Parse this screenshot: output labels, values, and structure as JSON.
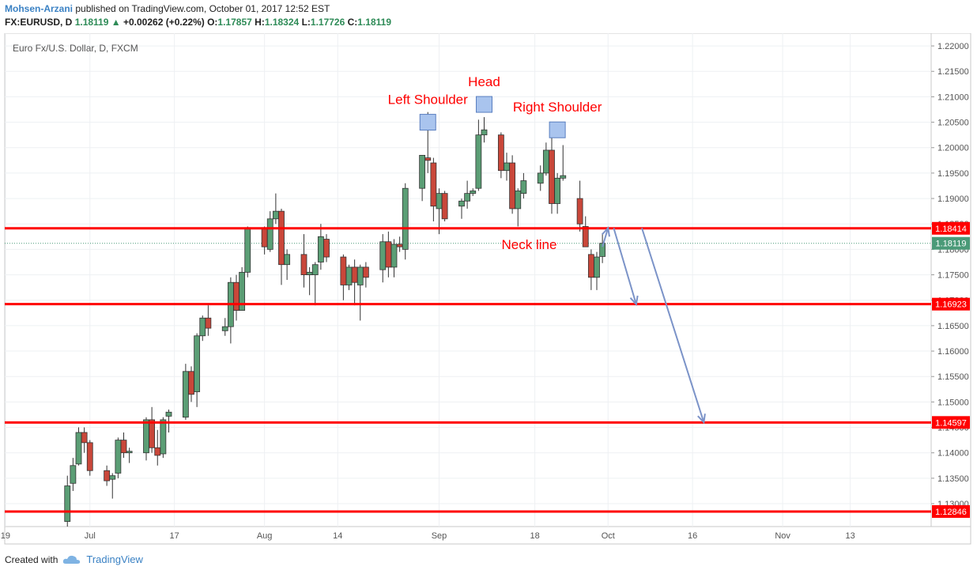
{
  "header": {
    "author": "Mohsen-Arzani",
    "published_text": "published on TradingView.com, October 01, 2017 12:52 EST",
    "symbol": "FX:EURUSD, D",
    "last": "1.18119",
    "arrow": "▲",
    "change": "+0.00262 (+0.22%)",
    "o_label": "O:",
    "o_val": "1.17857",
    "h_label": "H:",
    "h_val": "1.18324",
    "l_label": "L:",
    "l_val": "1.17726",
    "c_label": "C:",
    "c_val": "1.18119"
  },
  "footer": {
    "created_with": "Created with",
    "brand": "TradingView"
  },
  "colors": {
    "up": "#5b9e75",
    "down": "#c9473a",
    "level": "#ff0000",
    "arrow": "#7b93c8",
    "box": "#a9c4ee"
  },
  "chart_data": {
    "type": "candlestick",
    "title": "Euro Fx/U.S. Dollar, D, FXCM",
    "ylim": [
      1.1255,
      1.2225
    ],
    "y_ticks": [
      "1.22000",
      "1.21500",
      "1.21000",
      "1.20500",
      "1.20000",
      "1.19500",
      "1.19000",
      "1.18500",
      "1.18000",
      "1.17500",
      "1.17000",
      "1.16500",
      "1.16000",
      "1.15500",
      "1.15000",
      "1.14500",
      "1.14000",
      "1.13500",
      "1.13000"
    ],
    "x_ticks": [
      {
        "label": "19",
        "day": -17
      },
      {
        "label": "Jul",
        "day": -2
      },
      {
        "label": "17",
        "day": 13
      },
      {
        "label": "Aug",
        "day": 29
      },
      {
        "label": "14",
        "day": 42
      },
      {
        "label": "Sep",
        "day": 60
      },
      {
        "label": "18",
        "day": 77
      },
      {
        "label": "Oct",
        "day": 90
      },
      {
        "label": "16",
        "day": 105
      },
      {
        "label": "Nov",
        "day": 121
      },
      {
        "label": "13",
        "day": 133
      }
    ],
    "candles": [
      {
        "d": -6,
        "o": 1.1265,
        "h": 1.1355,
        "l": 1.1255,
        "c": 1.1335
      },
      {
        "d": -5,
        "o": 1.134,
        "h": 1.139,
        "l": 1.1325,
        "c": 1.1375
      },
      {
        "d": -4,
        "o": 1.1378,
        "h": 1.145,
        "l": 1.1375,
        "c": 1.144
      },
      {
        "d": -3,
        "o": 1.144,
        "h": 1.145,
        "l": 1.14,
        "c": 1.142
      },
      {
        "d": -2,
        "o": 1.142,
        "h": 1.1425,
        "l": 1.1355,
        "c": 1.1365
      },
      {
        "d": 1,
        "o": 1.1365,
        "h": 1.1375,
        "l": 1.1335,
        "c": 1.1345
      },
      {
        "d": 2,
        "o": 1.1348,
        "h": 1.136,
        "l": 1.131,
        "c": 1.1355
      },
      {
        "d": 3,
        "o": 1.136,
        "h": 1.143,
        "l": 1.135,
        "c": 1.1425
      },
      {
        "d": 4,
        "o": 1.1425,
        "h": 1.144,
        "l": 1.139,
        "c": 1.14
      },
      {
        "d": 5,
        "o": 1.14,
        "h": 1.141,
        "l": 1.138,
        "c": 1.1403
      },
      {
        "d": 8,
        "o": 1.14,
        "h": 1.147,
        "l": 1.1385,
        "c": 1.1465
      },
      {
        "d": 9,
        "o": 1.1465,
        "h": 1.149,
        "l": 1.14,
        "c": 1.141
      },
      {
        "d": 10,
        "o": 1.141,
        "h": 1.1445,
        "l": 1.1375,
        "c": 1.1395
      },
      {
        "d": 11,
        "o": 1.1398,
        "h": 1.147,
        "l": 1.139,
        "c": 1.1465
      },
      {
        "d": 12,
        "o": 1.1472,
        "h": 1.1485,
        "l": 1.144,
        "c": 1.148
      },
      {
        "d": 15,
        "o": 1.147,
        "h": 1.1575,
        "l": 1.1465,
        "c": 1.156
      },
      {
        "d": 16,
        "o": 1.156,
        "h": 1.157,
        "l": 1.15,
        "c": 1.1515
      },
      {
        "d": 17,
        "o": 1.152,
        "h": 1.1635,
        "l": 1.149,
        "c": 1.163
      },
      {
        "d": 18,
        "o": 1.163,
        "h": 1.167,
        "l": 1.162,
        "c": 1.1665
      },
      {
        "d": 19,
        "o": 1.1665,
        "h": 1.169,
        "l": 1.163,
        "c": 1.1645
      },
      {
        "d": 22,
        "o": 1.164,
        "h": 1.1665,
        "l": 1.163,
        "c": 1.1648
      },
      {
        "d": 23,
        "o": 1.1648,
        "h": 1.1745,
        "l": 1.1615,
        "c": 1.1735
      },
      {
        "d": 24,
        "o": 1.1735,
        "h": 1.175,
        "l": 1.166,
        "c": 1.168
      },
      {
        "d": 25,
        "o": 1.168,
        "h": 1.1765,
        "l": 1.168,
        "c": 1.1755
      },
      {
        "d": 26,
        "o": 1.1755,
        "h": 1.1845,
        "l": 1.1745,
        "c": 1.184
      },
      {
        "d": 29,
        "o": 1.184,
        "h": 1.1845,
        "l": 1.179,
        "c": 1.1805
      },
      {
        "d": 30,
        "o": 1.18,
        "h": 1.1875,
        "l": 1.1795,
        "c": 1.186
      },
      {
        "d": 31,
        "o": 1.186,
        "h": 1.191,
        "l": 1.185,
        "c": 1.1875
      },
      {
        "d": 32,
        "o": 1.1875,
        "h": 1.188,
        "l": 1.173,
        "c": 1.177
      },
      {
        "d": 33,
        "o": 1.177,
        "h": 1.18,
        "l": 1.174,
        "c": 1.179
      },
      {
        "d": 36,
        "o": 1.179,
        "h": 1.183,
        "l": 1.1725,
        "c": 1.175
      },
      {
        "d": 37,
        "o": 1.175,
        "h": 1.1765,
        "l": 1.171,
        "c": 1.1755
      },
      {
        "d": 38,
        "o": 1.175,
        "h": 1.1775,
        "l": 1.169,
        "c": 1.177
      },
      {
        "d": 39,
        "o": 1.1775,
        "h": 1.185,
        "l": 1.176,
        "c": 1.1825
      },
      {
        "d": 40,
        "o": 1.182,
        "h": 1.183,
        "l": 1.1775,
        "c": 1.1785
      },
      {
        "d": 43,
        "o": 1.1785,
        "h": 1.179,
        "l": 1.17,
        "c": 1.173
      },
      {
        "d": 44,
        "o": 1.173,
        "h": 1.177,
        "l": 1.172,
        "c": 1.1765
      },
      {
        "d": 45,
        "o": 1.1765,
        "h": 1.178,
        "l": 1.169,
        "c": 1.1735
      },
      {
        "d": 46,
        "o": 1.173,
        "h": 1.177,
        "l": 1.166,
        "c": 1.1765
      },
      {
        "d": 47,
        "o": 1.1765,
        "h": 1.1775,
        "l": 1.1725,
        "c": 1.1745
      },
      {
        "d": 50,
        "o": 1.176,
        "h": 1.183,
        "l": 1.1735,
        "c": 1.1815
      },
      {
        "d": 51,
        "o": 1.1815,
        "h": 1.1835,
        "l": 1.1745,
        "c": 1.1765
      },
      {
        "d": 52,
        "o": 1.1765,
        "h": 1.182,
        "l": 1.1745,
        "c": 1.181
      },
      {
        "d": 53,
        "o": 1.181,
        "h": 1.1825,
        "l": 1.1795,
        "c": 1.1805
      },
      {
        "d": 54,
        "o": 1.18,
        "h": 1.193,
        "l": 1.178,
        "c": 1.192
      },
      {
        "d": 57,
        "o": 1.192,
        "h": 1.1985,
        "l": 1.1895,
        "c": 1.1985
      },
      {
        "d": 58,
        "o": 1.198,
        "h": 1.207,
        "l": 1.195,
        "c": 1.1975
      },
      {
        "d": 59,
        "o": 1.197,
        "h": 1.198,
        "l": 1.1855,
        "c": 1.1885
      },
      {
        "d": 60,
        "o": 1.188,
        "h": 1.192,
        "l": 1.183,
        "c": 1.191
      },
      {
        "d": 61,
        "o": 1.191,
        "h": 1.1915,
        "l": 1.1855,
        "c": 1.186
      },
      {
        "d": 64,
        "o": 1.1885,
        "h": 1.19,
        "l": 1.186,
        "c": 1.1895
      },
      {
        "d": 65,
        "o": 1.1895,
        "h": 1.1935,
        "l": 1.188,
        "c": 1.191
      },
      {
        "d": 66,
        "o": 1.191,
        "h": 1.192,
        "l": 1.1905,
        "c": 1.1915
      },
      {
        "d": 67,
        "o": 1.192,
        "h": 1.2055,
        "l": 1.1915,
        "c": 1.2025
      },
      {
        "d": 68,
        "o": 1.2025,
        "h": 1.206,
        "l": 1.201,
        "c": 1.2035
      },
      {
        "d": 71,
        "o": 1.2025,
        "h": 1.203,
        "l": 1.194,
        "c": 1.1955
      },
      {
        "d": 72,
        "o": 1.1955,
        "h": 1.199,
        "l": 1.1935,
        "c": 1.197
      },
      {
        "d": 73,
        "o": 1.197,
        "h": 1.1985,
        "l": 1.187,
        "c": 1.188
      },
      {
        "d": 74,
        "o": 1.188,
        "h": 1.192,
        "l": 1.1845,
        "c": 1.1915
      },
      {
        "d": 75,
        "o": 1.191,
        "h": 1.195,
        "l": 1.19,
        "c": 1.1935
      },
      {
        "d": 78,
        "o": 1.193,
        "h": 1.1965,
        "l": 1.1915,
        "c": 1.195
      },
      {
        "d": 79,
        "o": 1.195,
        "h": 1.201,
        "l": 1.1945,
        "c": 1.1995
      },
      {
        "d": 80,
        "o": 1.1995,
        "h": 1.2035,
        "l": 1.187,
        "c": 1.189
      },
      {
        "d": 81,
        "o": 1.189,
        "h": 1.195,
        "l": 1.187,
        "c": 1.194
      },
      {
        "d": 82,
        "o": 1.194,
        "h": 1.2005,
        "l": 1.1935,
        "c": 1.1945
      },
      {
        "d": 85,
        "o": 1.19,
        "h": 1.1935,
        "l": 1.1835,
        "c": 1.185
      },
      {
        "d": 86,
        "o": 1.1845,
        "h": 1.1865,
        "l": 1.181,
        "c": 1.1805
      },
      {
        "d": 87,
        "o": 1.179,
        "h": 1.18,
        "l": 1.172,
        "c": 1.1745
      },
      {
        "d": 88,
        "o": 1.1745,
        "h": 1.1795,
        "l": 1.172,
        "c": 1.1785
      },
      {
        "d": 89,
        "o": 1.1786,
        "h": 1.1832,
        "l": 1.1773,
        "c": 1.1812
      }
    ],
    "levels": [
      {
        "value": 1.18414,
        "label": "1.18414"
      },
      {
        "value": 1.16923,
        "label": "1.16923"
      },
      {
        "value": 1.14597,
        "label": "1.14597"
      },
      {
        "value": 1.12846,
        "label": "1.12846"
      }
    ],
    "last_price": {
      "value": 1.18119,
      "label": "1.18119"
    },
    "annotations": [
      {
        "text": "Left Shoulder",
        "day": 58,
        "box_price": 1.205
      },
      {
        "text": "Head",
        "day": 68,
        "box_price": 1.2085
      },
      {
        "text": "Right Shoulder",
        "day": 81,
        "box_price": 1.2035
      },
      {
        "text": "Neck line",
        "day": 76,
        "price": 1.181
      }
    ],
    "arrows": [
      {
        "from": [
          89,
          1.1805
        ],
        "to": [
          90,
          1.1842
        ]
      },
      {
        "from": [
          91,
          1.1842
        ],
        "to": [
          95,
          1.1692
        ]
      },
      {
        "from": [
          96,
          1.1842
        ],
        "to": [
          107,
          1.146
        ]
      }
    ]
  }
}
